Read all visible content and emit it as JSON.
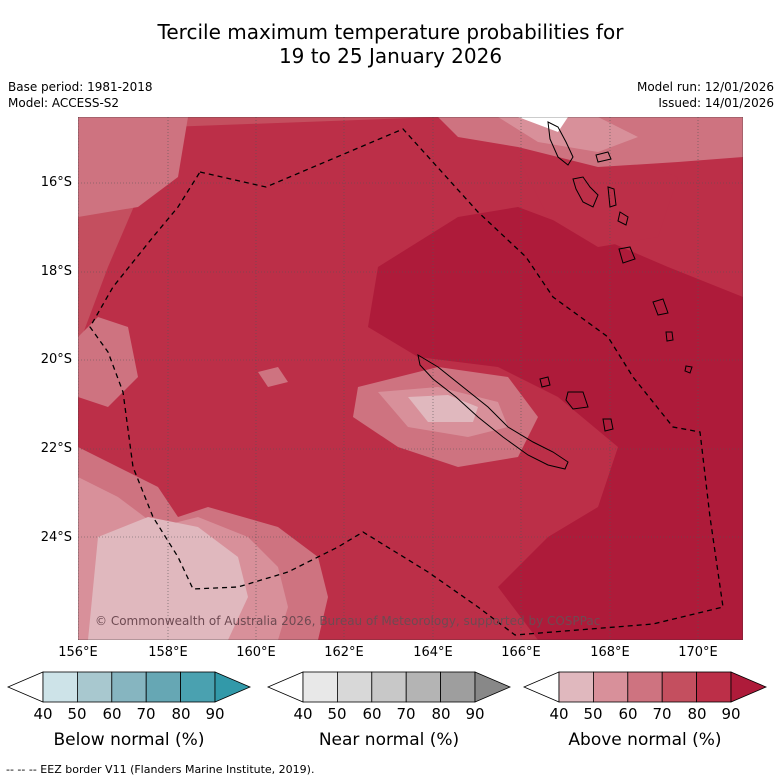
{
  "title": {
    "line1": "Tercile maximum temperature probabilities for",
    "line2": "19 to 25 January 2026"
  },
  "meta": {
    "base_period": "Base period: 1981-2018",
    "model": "Model: ACCESS-S2",
    "model_run": "Model run: 12/01/2026",
    "issued": "Issued: 14/01/2026"
  },
  "map": {
    "lat_labels": [
      "16°S",
      "18°S",
      "20°S",
      "22°S",
      "24°S"
    ],
    "lon_labels": [
      "156°E",
      "158°E",
      "160°E",
      "162°E",
      "164°E",
      "166°E",
      "168°E",
      "170°E"
    ],
    "copyright": "© Commonwealth of Australia 2026, Bureau of Meteorology, supported by COSPPac"
  },
  "colorbars": [
    {
      "label": "Below normal (%)",
      "ticks": [
        "40",
        "50",
        "60",
        "70",
        "80",
        "90"
      ],
      "colors": [
        "#ffffff",
        "#cde3e8",
        "#a8c8cf",
        "#86b5c0",
        "#66a7b4",
        "#4aa1b0",
        "#3299a9"
      ]
    },
    {
      "label": "Near normal (%)",
      "ticks": [
        "40",
        "50",
        "60",
        "70",
        "80",
        "90"
      ],
      "colors": [
        "#ffffff",
        "#e8e8e8",
        "#d8d8d8",
        "#c8c8c8",
        "#b4b4b4",
        "#9e9e9e",
        "#888888"
      ]
    },
    {
      "label": "Above normal (%)",
      "ticks": [
        "40",
        "50",
        "60",
        "70",
        "80",
        "90"
      ],
      "colors": [
        "#ffffff",
        "#e0b8be",
        "#d8909a",
        "#ce7380",
        "#c44f5f",
        "#bc2f48",
        "#ae1b3a"
      ]
    }
  ],
  "footnote": "-- -- -- EEZ border V11 (Flanders Marine Institute, 2019)."
}
